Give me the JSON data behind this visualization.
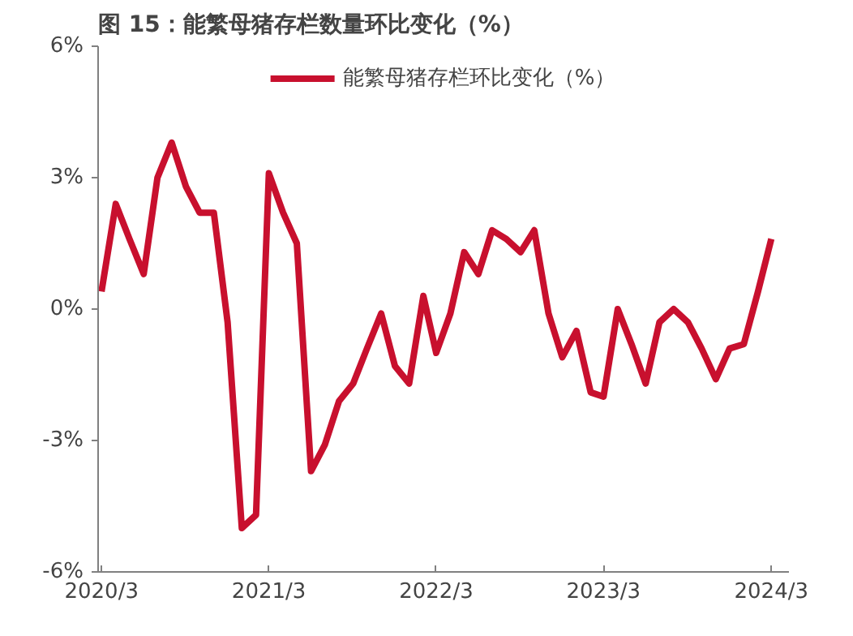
{
  "chart_data": {
    "type": "line",
    "title": "图 15：能繁母猪存栏数量环比变化（%）",
    "x": [
      "2020-03",
      "2020-04",
      "2020-05",
      "2020-06",
      "2020-07",
      "2020-08",
      "2020-09",
      "2020-10",
      "2020-11",
      "2020-12",
      "2021-01",
      "2021-02",
      "2021-03",
      "2021-04",
      "2021-05",
      "2021-06",
      "2021-07",
      "2021-08",
      "2021-09",
      "2021-10",
      "2021-11",
      "2021-12",
      "2022-01",
      "2022-02",
      "2022-03",
      "2022-04",
      "2022-05",
      "2022-06",
      "2022-07",
      "2022-08",
      "2022-09",
      "2022-10",
      "2022-11",
      "2022-12",
      "2023-01",
      "2023-02",
      "2023-03",
      "2023-04",
      "2023-05",
      "2023-06",
      "2023-07",
      "2023-08",
      "2023-09",
      "2023-10",
      "2023-11",
      "2023-12",
      "2024-01",
      "2024-02",
      "2024-03"
    ],
    "series": [
      {
        "name": "能繁母猪存栏环比变化（%）",
        "color": "#c8102e",
        "values": [
          0.4,
          2.4,
          1.6,
          0.8,
          3.0,
          3.8,
          2.8,
          2.2,
          2.2,
          -0.3,
          -5.0,
          -4.7,
          3.1,
          2.2,
          1.5,
          -3.7,
          -3.1,
          -2.1,
          -1.7,
          -0.9,
          -0.1,
          -1.3,
          -1.7,
          0.3,
          -1.0,
          -0.1,
          1.3,
          0.8,
          1.8,
          1.6,
          1.3,
          1.8,
          -0.1,
          -1.1,
          -0.5,
          -1.9,
          -2.0,
          0.0,
          -0.8,
          -1.7,
          -0.3,
          0.0,
          -0.3,
          -0.9,
          -1.6,
          -0.9,
          -0.8,
          0.4,
          1.6
        ]
      }
    ],
    "xlim": [
      "2020-03",
      "2024-04"
    ],
    "xticks": [
      {
        "value": "2020-03",
        "label": "2020/3"
      },
      {
        "value": "2021-03",
        "label": "2021/3"
      },
      {
        "value": "2022-03",
        "label": "2022/3"
      },
      {
        "value": "2023-03",
        "label": "2023/3"
      },
      {
        "value": "2024-03",
        "label": "2024/3"
      }
    ],
    "ylim": [
      -6,
      6
    ],
    "yticks": [
      {
        "value": -6,
        "label": "-6%"
      },
      {
        "value": -3,
        "label": "-3%"
      },
      {
        "value": 0,
        "label": "0%"
      },
      {
        "value": 3,
        "label": "3%"
      },
      {
        "value": 6,
        "label": "6%"
      }
    ],
    "grid": false,
    "legend": "top",
    "marker": "none",
    "line_style": "solid"
  }
}
